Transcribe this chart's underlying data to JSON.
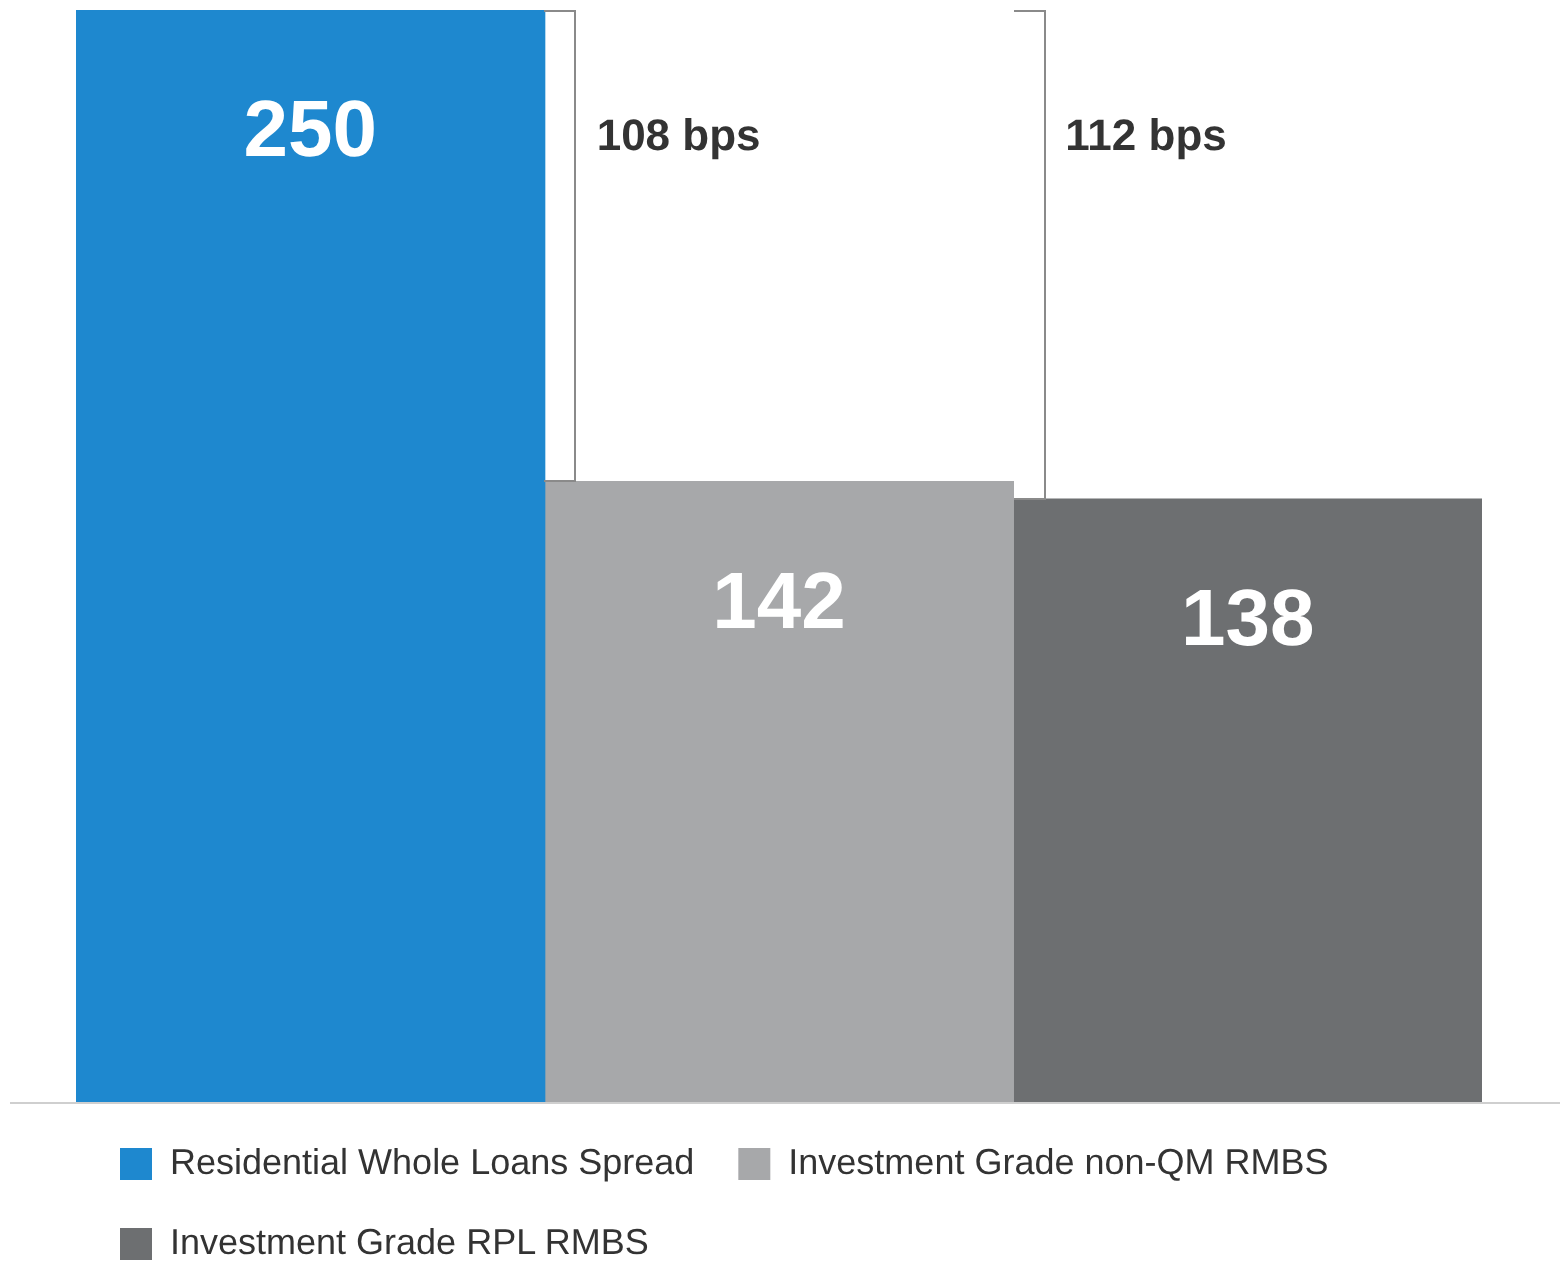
{
  "chart_data": {
    "type": "bar",
    "categories": [
      null
    ],
    "series": [
      {
        "name": "Residential Whole Loans Spread",
        "color": "#1e88cf",
        "values": [
          250
        ]
      },
      {
        "name": "Investment Grade non-QM RMBS",
        "color": "#a7a8aa",
        "values": [
          142
        ]
      },
      {
        "name": "Investment Grade RPL RMBS",
        "color": "#6d6f71",
        "values": [
          138
        ]
      }
    ],
    "ylim": [
      0,
      250
    ],
    "grid": false,
    "legend": "bottom",
    "data_labels": true,
    "annotations": [
      "108 bps",
      "112 bps"
    ]
  }
}
